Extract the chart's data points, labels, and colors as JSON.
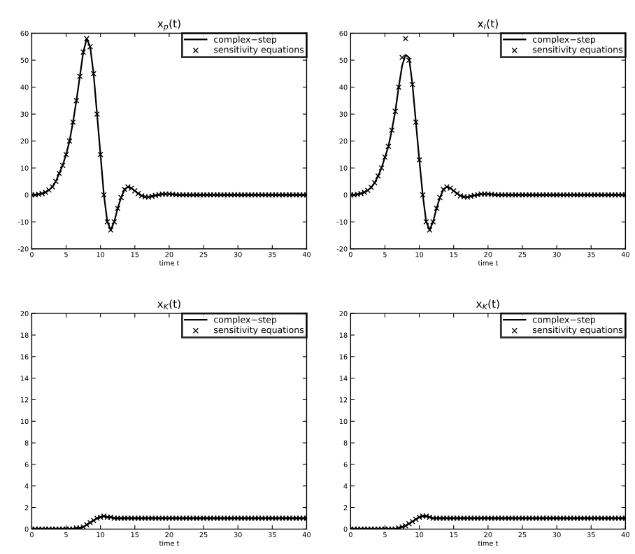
{
  "chart_data": [
    {
      "type": "line",
      "title": "x$_{p}$(t)",
      "xlabel": "time t",
      "xlim": [
        0,
        40
      ],
      "xticks": [
        0,
        5,
        10,
        15,
        20,
        25,
        30,
        35,
        40
      ],
      "ylim": [
        -20,
        60
      ],
      "yticks": [
        -20,
        -10,
        0,
        10,
        20,
        30,
        40,
        50,
        60
      ],
      "grid": false,
      "legend": "top right",
      "x": [
        0,
        0.5,
        1,
        1.5,
        2,
        2.5,
        3,
        3.5,
        4,
        4.5,
        5,
        5.5,
        6,
        6.5,
        7,
        7.5,
        8,
        8.5,
        9,
        9.5,
        10,
        10.5,
        11,
        11.5,
        12,
        12.5,
        13,
        13.5,
        14,
        14.5,
        15,
        15.5,
        16,
        16.5,
        17,
        17.5,
        18,
        18.5,
        19,
        19.5,
        20,
        20.5,
        21,
        21.5,
        22,
        22.5,
        23,
        23.5,
        24,
        24.5,
        25,
        25.5,
        26,
        26.5,
        27,
        27.5,
        28,
        28.5,
        29,
        29.5,
        30,
        30.5,
        31,
        31.5,
        32,
        32.5,
        33,
        33.5,
        34,
        34.5,
        35,
        35.5,
        36,
        36.5,
        37,
        37.5,
        38,
        38.5,
        39,
        39.5,
        40
      ],
      "series": [
        {
          "name": "complex−step",
          "marker": "none",
          "line_style": "solid",
          "color": "#000000",
          "values": [
            0,
            0,
            0.2,
            0.5,
            1,
            1.8,
            3,
            5,
            8,
            11,
            15,
            20,
            27,
            35,
            44,
            53,
            58,
            55,
            45,
            30,
            15,
            0,
            -10,
            -13,
            -10,
            -5,
            -1,
            2,
            3,
            2.5,
            1.5,
            0.5,
            -0.3,
            -0.7,
            -0.8,
            -0.5,
            -0.2,
            0.1,
            0.3,
            0.3,
            0.3,
            0.2,
            0.1,
            0,
            0,
            0,
            0,
            0,
            0,
            0,
            0,
            0,
            0,
            0,
            0,
            0,
            0,
            0,
            0,
            0,
            0,
            0,
            0,
            0,
            0,
            0,
            0,
            0,
            0,
            0,
            0,
            0,
            0,
            0,
            0,
            0,
            0,
            0,
            0,
            0,
            0
          ]
        },
        {
          "name": "sensitivity equations",
          "type": "scatter",
          "marker": "cross",
          "color": "#000000",
          "values": [
            0,
            0,
            0.2,
            0.5,
            1,
            1.8,
            3,
            5,
            8,
            11,
            15,
            20,
            27,
            35,
            44,
            53,
            58,
            55,
            45,
            30,
            15,
            0,
            -10,
            -13,
            -10,
            -5,
            -1,
            2,
            3,
            2.5,
            1.5,
            0.5,
            -0.3,
            -0.7,
            -0.8,
            -0.5,
            -0.2,
            0.1,
            0.3,
            0.3,
            0.3,
            0.2,
            0.1,
            0,
            0,
            0,
            0,
            0,
            0,
            0,
            0,
            0,
            0,
            0,
            0,
            0,
            0,
            0,
            0,
            0,
            0,
            0,
            0,
            0,
            0,
            0,
            0,
            0,
            0,
            0,
            0,
            0,
            0,
            0,
            0,
            0,
            0,
            0,
            0,
            0,
            0
          ]
        }
      ]
    },
    {
      "type": "line",
      "title": "x$_{I}$(t)",
      "xlabel": "time t",
      "xlim": [
        0,
        40
      ],
      "xticks": [
        0,
        5,
        10,
        15,
        20,
        25,
        30,
        35,
        40
      ],
      "ylim": [
        -20,
        60
      ],
      "yticks": [
        -20,
        -10,
        0,
        10,
        20,
        30,
        40,
        50,
        60
      ],
      "grid": false,
      "legend": "top right",
      "x": [
        0,
        0.5,
        1,
        1.5,
        2,
        2.5,
        3,
        3.5,
        4,
        4.5,
        5,
        5.5,
        6,
        6.5,
        7,
        7.5,
        8,
        8.5,
        9,
        9.5,
        10,
        10.5,
        11,
        11.5,
        12,
        12.5,
        13,
        13.5,
        14,
        14.5,
        15,
        15.5,
        16,
        16.5,
        17,
        17.5,
        18,
        18.5,
        19,
        19.5,
        20,
        20.5,
        21,
        21.5,
        22,
        22.5,
        23,
        23.5,
        24,
        24.5,
        25,
        25.5,
        26,
        26.5,
        27,
        27.5,
        28,
        28.5,
        29,
        29.5,
        30,
        30.5,
        31,
        31.5,
        32,
        32.5,
        33,
        33.5,
        34,
        34.5,
        35,
        35.5,
        36,
        36.5,
        37,
        37.5,
        38,
        38.5,
        39,
        39.5,
        40
      ],
      "series": [
        {
          "name": "complex−step",
          "marker": "none",
          "line_style": "solid",
          "color": "#000000",
          "values": [
            0,
            0,
            0.2,
            0.5,
            1,
            1.7,
            2.8,
            4.5,
            7,
            10,
            14,
            18,
            24,
            31,
            40,
            48,
            52,
            51,
            41,
            27,
            13,
            0,
            -10,
            -13,
            -10,
            -5,
            -1,
            2,
            3,
            2.5,
            1.5,
            0.5,
            -0.3,
            -0.7,
            -0.8,
            -0.5,
            -0.2,
            0.1,
            0.3,
            0.3,
            0.3,
            0.2,
            0.1,
            0,
            0,
            0,
            0,
            0,
            0,
            0,
            0,
            0,
            0,
            0,
            0,
            0,
            0,
            0,
            0,
            0,
            0,
            0,
            0,
            0,
            0,
            0,
            0,
            0,
            0,
            0,
            0,
            0,
            0,
            0,
            0,
            0,
            0,
            0,
            0,
            0,
            0
          ]
        },
        {
          "name": "sensitivity equations",
          "type": "scatter",
          "marker": "cross",
          "color": "#000000",
          "values": [
            0,
            0,
            0.2,
            0.5,
            1,
            1.7,
            2.8,
            4.5,
            7,
            10,
            14,
            18,
            24,
            31,
            40,
            51,
            58,
            50,
            41,
            27,
            13,
            0,
            -10,
            -13,
            -10,
            -5,
            -1,
            2,
            3,
            2.5,
            1.5,
            0.5,
            -0.3,
            -0.7,
            -0.8,
            -0.5,
            -0.2,
            0.1,
            0.3,
            0.3,
            0.3,
            0.2,
            0.1,
            0,
            0,
            0,
            0,
            0,
            0,
            0,
            0,
            0,
            0,
            0,
            0,
            0,
            0,
            0,
            0,
            0,
            0,
            0,
            0,
            0,
            0,
            0,
            0,
            0,
            0,
            0,
            0,
            0,
            0,
            0,
            0,
            0,
            0,
            0,
            0,
            0,
            0
          ]
        }
      ]
    },
    {
      "type": "line",
      "title": "x$_{K}$(t)",
      "xlabel": "time t",
      "xlim": [
        0,
        40
      ],
      "xticks": [
        0,
        5,
        10,
        15,
        20,
        25,
        30,
        35,
        40
      ],
      "ylim": [
        0,
        20
      ],
      "yticks": [
        0,
        2,
        4,
        6,
        8,
        10,
        12,
        14,
        16,
        18,
        20
      ],
      "grid": false,
      "legend": "top right",
      "x": [
        0,
        0.5,
        1,
        1.5,
        2,
        2.5,
        3,
        3.5,
        4,
        4.5,
        5,
        5.5,
        6,
        6.5,
        7,
        7.5,
        8,
        8.5,
        9,
        9.5,
        10,
        10.5,
        11,
        11.5,
        12,
        12.5,
        13,
        13.5,
        14,
        14.5,
        15,
        15.5,
        16,
        16.5,
        17,
        17.5,
        18,
        18.5,
        19,
        19.5,
        20,
        20.5,
        21,
        21.5,
        22,
        22.5,
        23,
        23.5,
        24,
        24.5,
        25,
        25.5,
        26,
        26.5,
        27,
        27.5,
        28,
        28.5,
        29,
        29.5,
        30,
        30.5,
        31,
        31.5,
        32,
        32.5,
        33,
        33.5,
        34,
        34.5,
        35,
        35.5,
        36,
        36.5,
        37,
        37.5,
        38,
        38.5,
        39,
        39.5,
        40
      ],
      "series": [
        {
          "name": "complex−step",
          "marker": "none",
          "line_style": "solid",
          "color": "#000000",
          "values": [
            0,
            0,
            0,
            0,
            0,
            0,
            0,
            0,
            0,
            0,
            0,
            0,
            0,
            0.1,
            0.1,
            0.2,
            0.4,
            0.6,
            0.8,
            1,
            1.1,
            1.2,
            1.1,
            1.1,
            1,
            1,
            1,
            1,
            1,
            1,
            1,
            1,
            1,
            1,
            1,
            1,
            1,
            1,
            1,
            1,
            1,
            1,
            1,
            1,
            1,
            1,
            1,
            1,
            1,
            1,
            1,
            1,
            1,
            1,
            1,
            1,
            1,
            1,
            1,
            1,
            1,
            1,
            1,
            1,
            1,
            1,
            1,
            1,
            1,
            1,
            1,
            1,
            1,
            1,
            1,
            1,
            1,
            1,
            1,
            1,
            1
          ]
        },
        {
          "name": "sensitivity equations",
          "type": "scatter",
          "marker": "cross",
          "color": "#000000",
          "values": [
            0,
            0,
            0,
            0,
            0,
            0,
            0,
            0,
            0,
            0,
            0,
            0,
            0,
            0.1,
            0.1,
            0.2,
            0.4,
            0.6,
            0.8,
            1,
            1.1,
            1.2,
            1.1,
            1.1,
            1,
            1,
            1,
            1,
            1,
            1,
            1,
            1,
            1,
            1,
            1,
            1,
            1,
            1,
            1,
            1,
            1,
            1,
            1,
            1,
            1,
            1,
            1,
            1,
            1,
            1,
            1,
            1,
            1,
            1,
            1,
            1,
            1,
            1,
            1,
            1,
            1,
            1,
            1,
            1,
            1,
            1,
            1,
            1,
            1,
            1,
            1,
            1,
            1,
            1,
            1,
            1,
            1,
            1,
            1,
            1,
            1
          ]
        }
      ]
    },
    {
      "type": "line",
      "title": "x$_{K}$(t)",
      "xlabel": "time t",
      "xlim": [
        0,
        40
      ],
      "xticks": [
        0,
        5,
        10,
        15,
        20,
        25,
        30,
        35,
        40
      ],
      "ylim": [
        0,
        20
      ],
      "yticks": [
        0,
        2,
        4,
        6,
        8,
        10,
        12,
        14,
        16,
        18,
        20
      ],
      "grid": false,
      "legend": "top right",
      "x": [
        0,
        0.5,
        1,
        1.5,
        2,
        2.5,
        3,
        3.5,
        4,
        4.5,
        5,
        5.5,
        6,
        6.5,
        7,
        7.5,
        8,
        8.5,
        9,
        9.5,
        10,
        10.5,
        11,
        11.5,
        12,
        12.5,
        13,
        13.5,
        14,
        14.5,
        15,
        15.5,
        16,
        16.5,
        17,
        17.5,
        18,
        18.5,
        19,
        19.5,
        20,
        20.5,
        21,
        21.5,
        22,
        22.5,
        23,
        23.5,
        24,
        24.5,
        25,
        25.5,
        26,
        26.5,
        27,
        27.5,
        28,
        28.5,
        29,
        29.5,
        30,
        30.5,
        31,
        31.5,
        32,
        32.5,
        33,
        33.5,
        34,
        34.5,
        35,
        35.5,
        36,
        36.5,
        37,
        37.5,
        38,
        38.5,
        39,
        39.5,
        40
      ],
      "series": [
        {
          "name": "complex−step",
          "marker": "none",
          "line_style": "solid",
          "color": "#000000",
          "values": [
            0,
            0,
            0,
            0,
            0,
            0,
            0,
            0,
            0,
            0,
            0,
            0,
            0,
            0,
            0.1,
            0.2,
            0.3,
            0.5,
            0.7,
            0.9,
            1.1,
            1.2,
            1.2,
            1.1,
            1,
            1,
            1,
            1,
            1,
            1,
            1,
            1,
            1,
            1,
            1,
            1,
            1,
            1,
            1,
            1,
            1,
            1,
            1,
            1,
            1,
            1,
            1,
            1,
            1,
            1,
            1,
            1,
            1,
            1,
            1,
            1,
            1,
            1,
            1,
            1,
            1,
            1,
            1,
            1,
            1,
            1,
            1,
            1,
            1,
            1,
            1,
            1,
            1,
            1,
            1,
            1,
            1,
            1,
            1,
            1,
            1
          ]
        },
        {
          "name": "sensitivity equations",
          "type": "scatter",
          "marker": "cross",
          "color": "#000000",
          "values": [
            0,
            0,
            0,
            0,
            0,
            0,
            0,
            0,
            0,
            0,
            0,
            0,
            0,
            0,
            0.1,
            0.2,
            0.3,
            0.5,
            0.7,
            0.9,
            1.1,
            1.2,
            1.2,
            1.1,
            1,
            1,
            1,
            1,
            1,
            1,
            1,
            1,
            1,
            1,
            1,
            1,
            1,
            1,
            1,
            1,
            1,
            1,
            1,
            1,
            1,
            1,
            1,
            1,
            1,
            1,
            1,
            1,
            1,
            1,
            1,
            1,
            1,
            1,
            1,
            1,
            1,
            1,
            1,
            1,
            1,
            1,
            1,
            1,
            1,
            1,
            1,
            1,
            1,
            1,
            1,
            1,
            1,
            1,
            1,
            1,
            1
          ]
        }
      ]
    }
  ]
}
